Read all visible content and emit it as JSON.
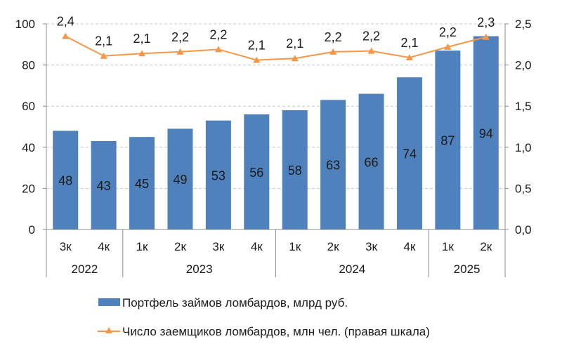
{
  "chart_data": {
    "type": "bar",
    "categories": [
      "3к",
      "4к",
      "1к",
      "2к",
      "3к",
      "4к",
      "1к",
      "2к",
      "3к",
      "4к",
      "1к",
      "2к"
    ],
    "groups": [
      {
        "label": "2022",
        "count": 2
      },
      {
        "label": "2023",
        "count": 4
      },
      {
        "label": "2024",
        "count": 4
      },
      {
        "label": "2025",
        "count": 2
      }
    ],
    "series": [
      {
        "name": "Портфель займов ломбардов, млрд руб.",
        "type": "bar",
        "axis": "left",
        "color": "#4f81bd",
        "values": [
          48,
          43,
          45,
          49,
          53,
          56,
          58,
          63,
          66,
          74,
          87,
          94
        ],
        "labels": [
          "48",
          "43",
          "45",
          "49",
          "53",
          "56",
          "58",
          "63",
          "66",
          "74",
          "87",
          "94"
        ]
      },
      {
        "name": "Число заемщиков ломбардов, млн чел. (правая шкала)",
        "type": "line",
        "axis": "right",
        "color": "#f79646",
        "marker": "triangle",
        "values": [
          2.35,
          2.11,
          2.14,
          2.16,
          2.19,
          2.06,
          2.08,
          2.16,
          2.17,
          2.09,
          2.22,
          2.34
        ],
        "labels": [
          "2,4",
          "2,1",
          "2,1",
          "2,2",
          "2,2",
          "2,1",
          "2,1",
          "2,2",
          "2,2",
          "2,1",
          "2,2",
          "2,3"
        ]
      }
    ],
    "y_left": {
      "min": 0,
      "max": 100,
      "step": 20,
      "ticks": [
        "0",
        "20",
        "40",
        "60",
        "80",
        "100"
      ]
    },
    "y_right": {
      "min": 0,
      "max": 2.5,
      "step": 0.5,
      "ticks": [
        "0,0",
        "0,5",
        "1,0",
        "1,5",
        "2,0",
        "2,5"
      ]
    },
    "grid": true,
    "legend_position": "bottom"
  }
}
